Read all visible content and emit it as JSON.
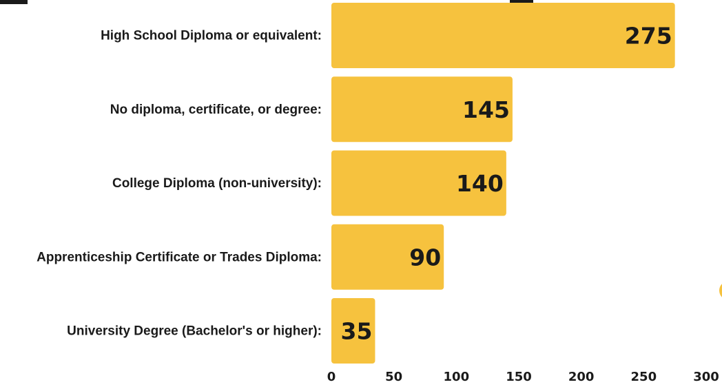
{
  "chart_data": {
    "type": "bar",
    "orientation": "horizontal",
    "categories": [
      "High School Diploma or equivalent:",
      "No diploma, certificate, or degree:",
      "College Diploma (non-university):",
      "Apprenticeship Certificate or Trades Diploma:",
      "University Degree (Bachelor's or higher):"
    ],
    "values": [
      275,
      145,
      140,
      90,
      35
    ],
    "value_labels": [
      "275",
      "145",
      "140",
      "90",
      "35"
    ],
    "xlim": [
      0,
      300
    ],
    "xticks": [
      0,
      50,
      100,
      150,
      200,
      250,
      300
    ],
    "xtick_labels": [
      "0",
      "50",
      "100",
      "150",
      "200",
      "250",
      "300"
    ],
    "grid": false,
    "legend": "none",
    "title": "",
    "xlabel": "",
    "ylabel": ""
  },
  "colors": {
    "bar": "#f6c23e",
    "text": "#1a1a1a",
    "background": "#ffffff"
  }
}
